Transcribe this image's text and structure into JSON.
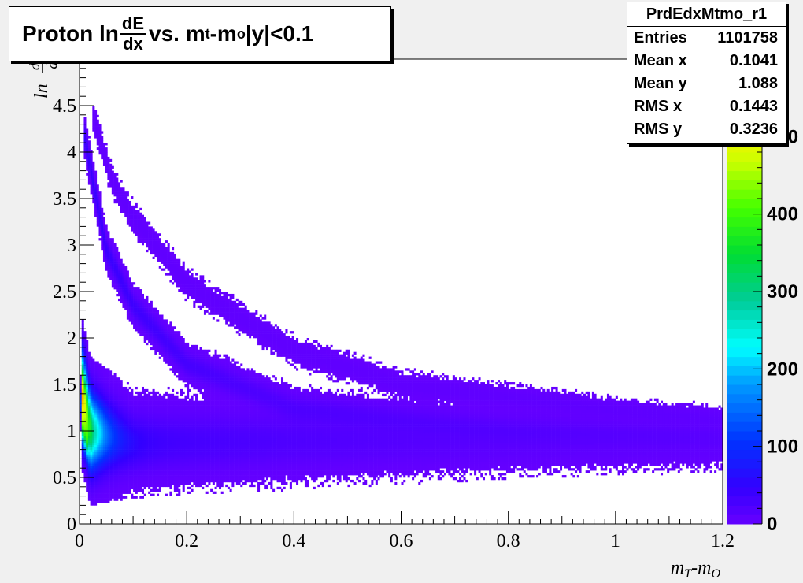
{
  "title": {
    "prefix": "Proton ln",
    "num": "dE",
    "den": "dx",
    "mid": " vs. m",
    "sub1": "t",
    "dash": "-m",
    "sub2": "o",
    "suffix": " |y|<0.1"
  },
  "stats": {
    "name": "PrdEdxMtmo_r1",
    "rows": [
      {
        "label": "Entries",
        "value": "1101758"
      },
      {
        "label": "Mean x",
        "value": "0.1041"
      },
      {
        "label": "Mean y",
        "value": "1.088"
      },
      {
        "label": "RMS x",
        "value": "0.1443"
      },
      {
        "label": "RMS y",
        "value": "0.3236"
      }
    ]
  },
  "colors": {
    "frame_bg": "#f0f0f0",
    "plot_bg": "#ffffff",
    "low": "#6600ff",
    "high": "#ff3300"
  },
  "chart_data": {
    "type": "heatmap",
    "xlabel": "m_T-m_O",
    "ylabel": "ln dE/dx",
    "xlim": [
      0,
      1.2
    ],
    "ylim": [
      0,
      5
    ],
    "xticks": [
      "0",
      "0.2",
      "0.4",
      "0.6",
      "0.8",
      "1",
      "1.2"
    ],
    "yticks": [
      "0",
      "0.5",
      "1",
      "1.5",
      "2",
      "2.5",
      "3",
      "3.5",
      "4",
      "4.5"
    ],
    "zticks": [
      "0",
      "100",
      "200",
      "300",
      "400",
      "500"
    ],
    "zlim": [
      0,
      600
    ],
    "bands": [
      {
        "name": "proton band",
        "y_at_x": [
          [
            0.003,
            1.45
          ],
          [
            0.02,
            1.0
          ],
          [
            0.1,
            0.88
          ],
          [
            0.4,
            0.9
          ],
          [
            0.8,
            0.9
          ],
          [
            1.2,
            0.88
          ]
        ],
        "width": [
          [
            0.003,
            0.28
          ],
          [
            0.1,
            0.2
          ],
          [
            1.2,
            0.13
          ]
        ],
        "peak": 560
      },
      {
        "name": "deuteron band",
        "y_at_x": [
          [
            0.008,
            4.2
          ],
          [
            0.05,
            2.95
          ],
          [
            0.1,
            2.35
          ],
          [
            0.2,
            1.72
          ],
          [
            0.4,
            1.25
          ],
          [
            0.8,
            1.02
          ],
          [
            1.2,
            0.95
          ]
        ],
        "width": [
          [
            0.008,
            0.09
          ],
          [
            0.4,
            0.09
          ],
          [
            1.2,
            0.08
          ]
        ],
        "peak": 45
      },
      {
        "name": "triton band",
        "y_at_x": [
          [
            0.025,
            4.4
          ],
          [
            0.06,
            3.7
          ],
          [
            0.1,
            3.3
          ],
          [
            0.2,
            2.58
          ],
          [
            0.4,
            1.86
          ],
          [
            0.6,
            1.5
          ],
          [
            1.0,
            1.23
          ],
          [
            1.2,
            1.14
          ]
        ],
        "width": [
          [
            0.025,
            0.08
          ],
          [
            0.4,
            0.08
          ],
          [
            1.2,
            0.06
          ]
        ],
        "peak": 6
      },
      {
        "name": "pion band",
        "y_at_x": [
          [
            0.002,
            1.3
          ],
          [
            0.006,
            1.05
          ],
          [
            0.01,
            0.95
          ],
          [
            0.015,
            0.85
          ]
        ],
        "width": [
          [
            0.002,
            0.1
          ],
          [
            0.015,
            0.1
          ]
        ],
        "peak": 120
      }
    ]
  }
}
